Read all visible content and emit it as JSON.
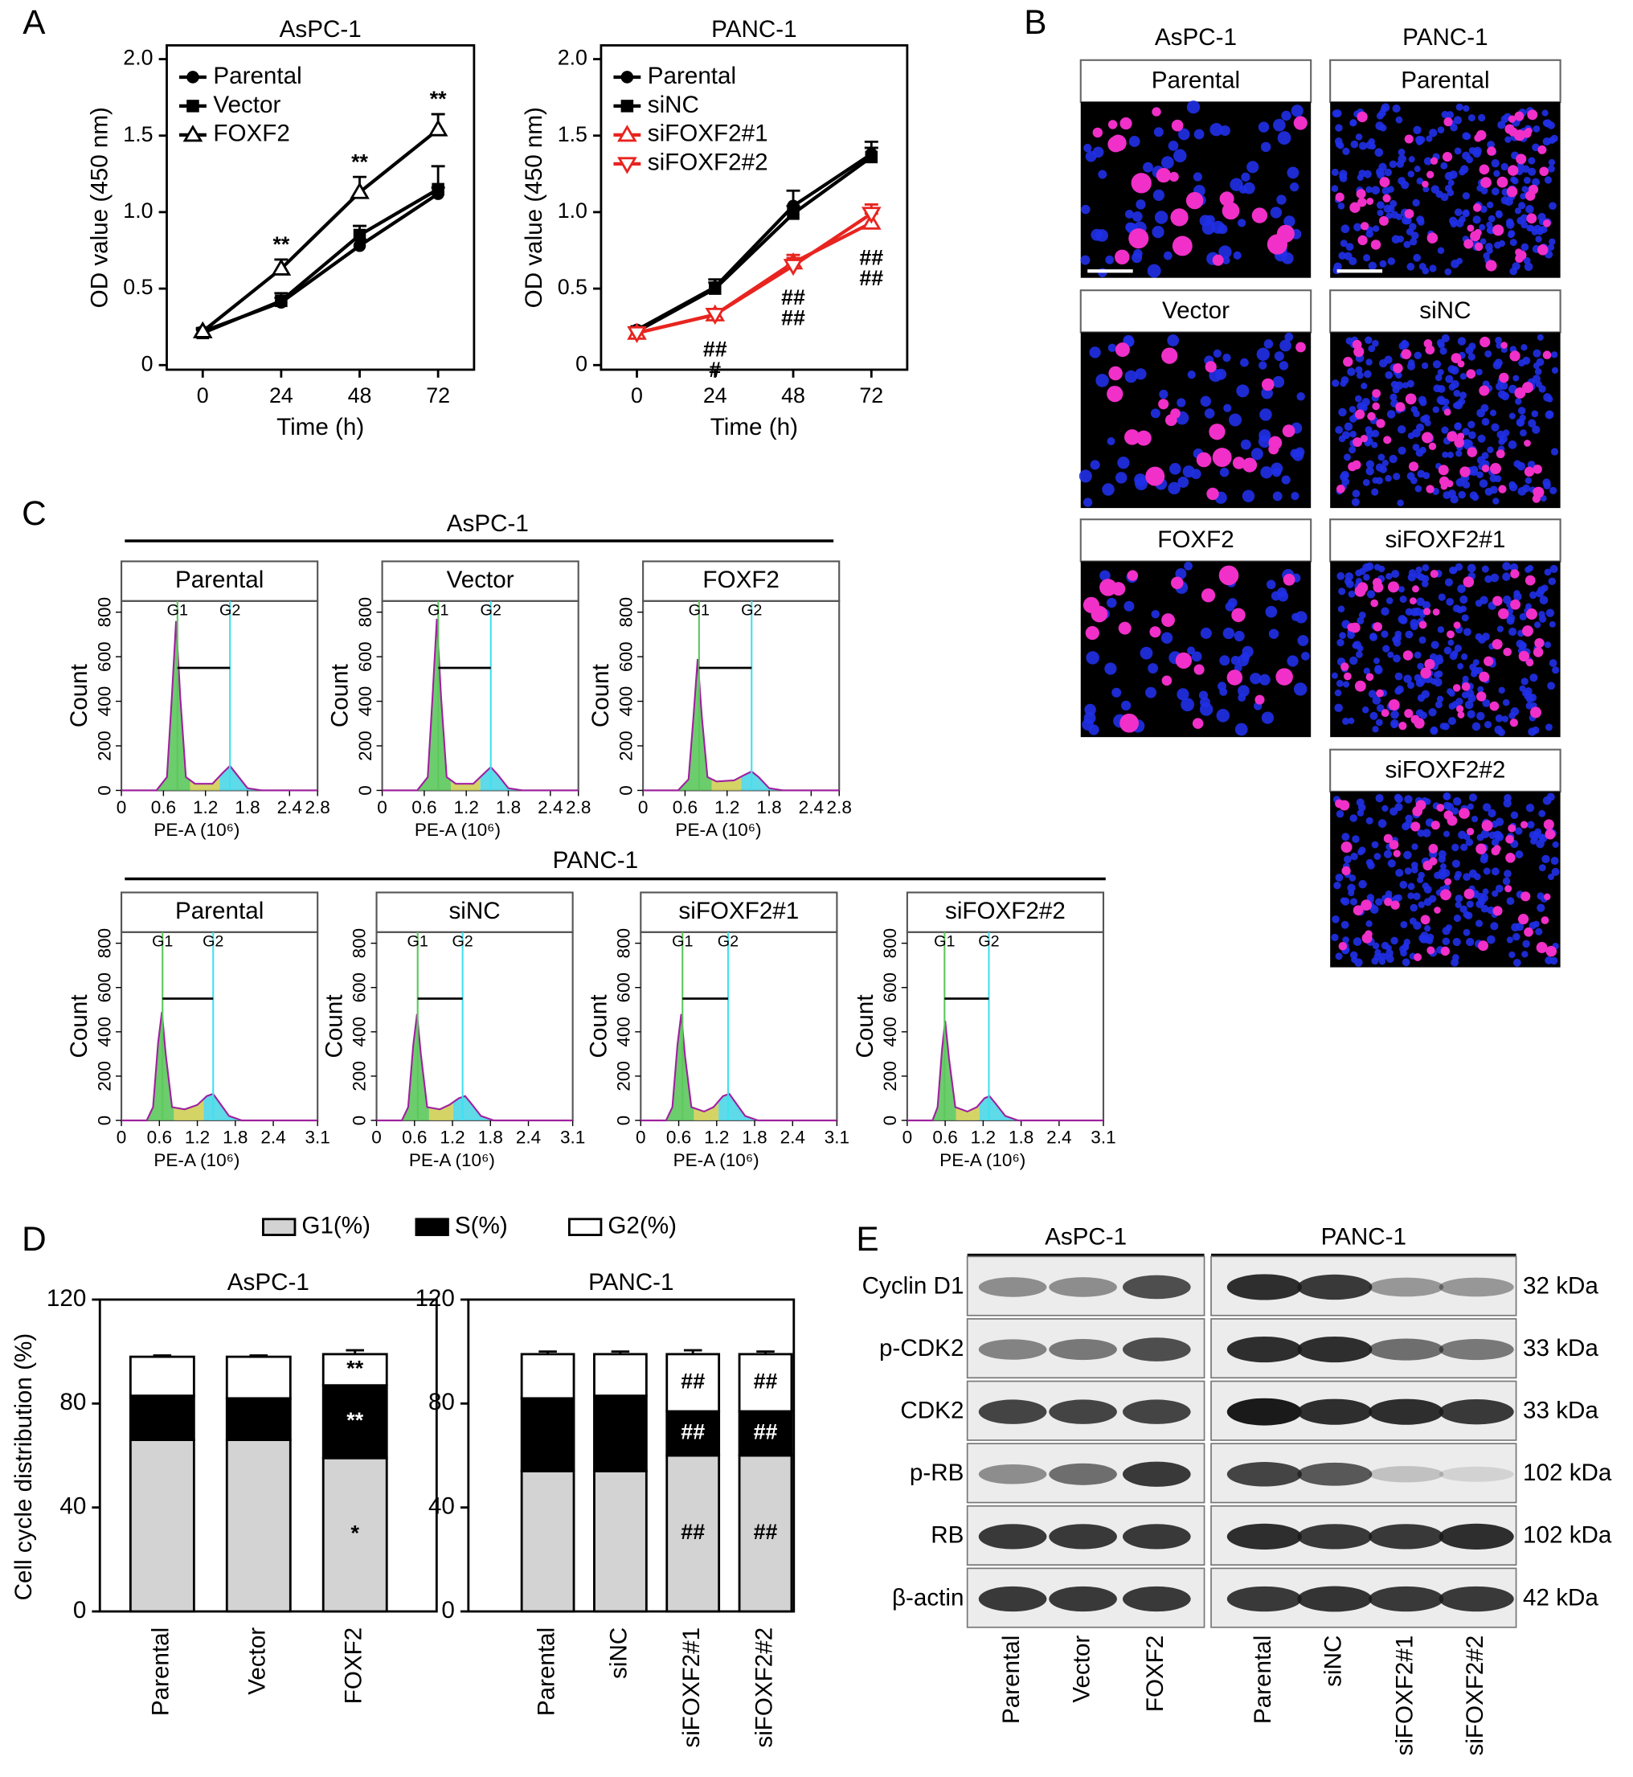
{
  "chart_data": [
    {
      "type": "line",
      "title": "AsPC-1",
      "xlabel": "Time (h)",
      "ylabel": "OD value (450 nm)",
      "x": [
        0,
        24,
        48,
        72
      ],
      "xlim": [
        -11,
        83
      ],
      "xticks": [
        0,
        24,
        48,
        72
      ],
      "ylim": [
        -0.03,
        2.09
      ],
      "yticks": [
        0,
        0.5,
        {
          "value": 1,
          "label": "1.0"
        },
        1.5,
        {
          "value": 2,
          "label": "2.0"
        }
      ],
      "legend": "upper left",
      "series": [
        {
          "name": "Parental",
          "color": "#000000",
          "marker": "circle",
          "values": [
            0.22,
            0.41,
            0.78,
            1.12
          ],
          "errors": [
            0.02,
            0.03,
            0.04,
            0.04
          ]
        },
        {
          "name": "Vector",
          "color": "#000000",
          "marker": "square",
          "values": [
            0.21,
            0.42,
            0.85,
            1.15
          ],
          "errors": [
            0.02,
            0.05,
            0.06,
            0.15
          ]
        },
        {
          "name": "FOXF2",
          "color": "#000000",
          "marker": "triangle-up-open",
          "values": [
            0.22,
            0.63,
            1.13,
            1.54
          ],
          "errors": [
            0.02,
            0.06,
            0.1,
            0.1
          ]
        }
      ],
      "annotations": [
        {
          "text": [
            "**"
          ],
          "series": 2,
          "index": 1,
          "position": "above"
        },
        {
          "text": [
            "**"
          ],
          "series": 2,
          "index": 2,
          "position": "above"
        },
        {
          "text": [
            "**"
          ],
          "series": 2,
          "index": 3,
          "position": "above"
        }
      ]
    },
    {
      "type": "line",
      "title": "PANC-1",
      "xlabel": "Time (h)",
      "ylabel": "OD value (450 nm)",
      "x": [
        0,
        24,
        48,
        72
      ],
      "xlim": [
        -11,
        83
      ],
      "xticks": [
        0,
        24,
        48,
        72
      ],
      "ylim": [
        -0.03,
        2.09
      ],
      "yticks": [
        0,
        0.5,
        {
          "value": 1,
          "label": "1.0"
        },
        1.5,
        {
          "value": 2,
          "label": "2.0"
        }
      ],
      "legend": "upper left",
      "series": [
        {
          "name": "Parental",
          "color": "#000000",
          "marker": "circle",
          "values": [
            0.23,
            0.51,
            1.04,
            1.38
          ],
          "errors": [
            0.02,
            0.05,
            0.1,
            0.08
          ]
        },
        {
          "name": "siNC",
          "color": "#000000",
          "marker": "square",
          "values": [
            0.22,
            0.5,
            0.99,
            1.36
          ],
          "errors": [
            0.02,
            0.04,
            0.05,
            0.06
          ]
        },
        {
          "name": "siFOXF2#1",
          "color": "#e8241f",
          "marker": "triangle-up-open",
          "values": [
            0.21,
            0.33,
            0.67,
            0.93
          ],
          "errors": [
            0.02,
            0.03,
            0.05,
            0.06
          ]
        },
        {
          "name": "siFOXF2#2",
          "color": "#e8241f",
          "marker": "triangle-down-open",
          "values": [
            0.21,
            0.33,
            0.65,
            0.99
          ],
          "errors": [
            0.02,
            0.03,
            0.05,
            0.06
          ]
        }
      ],
      "annotations": [
        {
          "text": [
            "##",
            "#"
          ],
          "series": 2,
          "index": 1,
          "position": "below"
        },
        {
          "text": [
            "##",
            "##"
          ],
          "series": 2,
          "index": 2,
          "position": "below"
        },
        {
          "text": [
            "##",
            "##"
          ],
          "series": 2,
          "index": 3,
          "position": "below"
        }
      ]
    },
    {
      "type": "flow",
      "title": "Parental",
      "xlabel": "PE-A (10⁶)",
      "ylabel": "Count",
      "xlim": [
        0,
        2.8
      ],
      "xticks": [
        0,
        0.6,
        1.2,
        1.8,
        2.4,
        2.8
      ],
      "ylim": [
        0,
        850
      ],
      "yticks": [
        0,
        200,
        400,
        600,
        800
      ],
      "x": [
        0,
        0.5,
        0.65,
        0.72,
        0.78,
        0.84,
        0.92,
        1.05,
        1.3,
        1.45,
        1.55,
        1.65,
        1.8,
        2.0,
        2.8
      ],
      "values": [
        0,
        0,
        60,
        420,
        760,
        420,
        60,
        30,
        30,
        80,
        110,
        70,
        10,
        0,
        0
      ],
      "markers": [
        {
          "label": "G1",
          "value": 0.8
        },
        {
          "label": "G2",
          "value": 1.55
        }
      ],
      "range_bar": 550
    },
    {
      "type": "flow",
      "title": "Vector",
      "xlabel": "PE-A (10⁶)",
      "ylabel": "Count",
      "xlim": [
        0,
        2.8
      ],
      "xticks": [
        0,
        0.6,
        1.2,
        1.8,
        2.4,
        2.8
      ],
      "ylim": [
        0,
        850
      ],
      "yticks": [
        0,
        200,
        400,
        600,
        800
      ],
      "x": [
        0,
        0.5,
        0.65,
        0.72,
        0.78,
        0.84,
        0.92,
        1.05,
        1.3,
        1.45,
        1.55,
        1.65,
        1.8,
        2.0,
        2.8
      ],
      "values": [
        0,
        0,
        60,
        430,
        770,
        420,
        60,
        30,
        30,
        75,
        105,
        70,
        10,
        0,
        0
      ],
      "markers": [
        {
          "label": "G1",
          "value": 0.8
        },
        {
          "label": "G2",
          "value": 1.55
        }
      ],
      "range_bar": 550
    },
    {
      "type": "flow",
      "title": "FOXF2",
      "xlabel": "PE-A (10⁶)",
      "ylabel": "Count",
      "xlim": [
        0,
        2.8
      ],
      "xticks": [
        0,
        0.6,
        1.2,
        1.8,
        2.4,
        2.8
      ],
      "ylim": [
        0,
        850
      ],
      "yticks": [
        0,
        200,
        400,
        600,
        800
      ],
      "x": [
        0,
        0.5,
        0.65,
        0.72,
        0.78,
        0.84,
        0.92,
        1.05,
        1.3,
        1.45,
        1.55,
        1.65,
        1.8,
        2.0,
        2.8
      ],
      "values": [
        0,
        0,
        50,
        330,
        590,
        330,
        60,
        40,
        45,
        70,
        85,
        60,
        10,
        0,
        0
      ],
      "markers": [
        {
          "label": "G1",
          "value": 0.8
        },
        {
          "label": "G2",
          "value": 1.55
        }
      ],
      "range_bar": 550
    },
    {
      "type": "flow",
      "title": "Parental",
      "xlabel": "PE-A (10⁶)",
      "ylabel": "Count",
      "xlim": [
        0,
        3.1
      ],
      "xticks": [
        0,
        0.6,
        1.2,
        1.8,
        2.4,
        3.1
      ],
      "ylim": [
        0,
        850
      ],
      "yticks": [
        0,
        200,
        400,
        600,
        800
      ],
      "x": [
        0,
        0.4,
        0.5,
        0.58,
        0.64,
        0.7,
        0.8,
        1.0,
        1.2,
        1.35,
        1.45,
        1.55,
        1.7,
        1.9,
        3.1
      ],
      "values": [
        0,
        0,
        60,
        350,
        490,
        300,
        60,
        50,
        70,
        110,
        120,
        80,
        20,
        0,
        0
      ],
      "markers": [
        {
          "label": "G1",
          "value": 0.65
        },
        {
          "label": "G2",
          "value": 1.45
        }
      ],
      "range_bar": 550
    },
    {
      "type": "flow",
      "title": "siNC",
      "xlabel": "PE-A (10⁶)",
      "ylabel": "Count",
      "xlim": [
        0,
        3.1
      ],
      "xticks": [
        0,
        0.6,
        1.2,
        1.8,
        2.4,
        3.1
      ],
      "ylim": [
        0,
        850
      ],
      "yticks": [
        0,
        200,
        400,
        600,
        800
      ],
      "x": [
        0,
        0.4,
        0.5,
        0.58,
        0.64,
        0.7,
        0.8,
        1.0,
        1.15,
        1.3,
        1.4,
        1.5,
        1.65,
        1.85,
        3.1
      ],
      "values": [
        0,
        0,
        60,
        340,
        480,
        300,
        60,
        50,
        70,
        100,
        110,
        75,
        20,
        0,
        0
      ],
      "markers": [
        {
          "label": "G1",
          "value": 0.65
        },
        {
          "label": "G2",
          "value": 1.36
        }
      ],
      "range_bar": 550
    },
    {
      "type": "flow",
      "title": "siFOXF2#1",
      "xlabel": "PE-A (10⁶)",
      "ylabel": "Count",
      "xlim": [
        0,
        3.1
      ],
      "xticks": [
        0,
        0.6,
        1.2,
        1.8,
        2.4,
        3.1
      ],
      "ylim": [
        0,
        850
      ],
      "yticks": [
        0,
        200,
        400,
        600,
        800
      ],
      "x": [
        0,
        0.4,
        0.5,
        0.58,
        0.64,
        0.7,
        0.8,
        1.0,
        1.15,
        1.3,
        1.4,
        1.5,
        1.65,
        1.85,
        3.1
      ],
      "values": [
        0,
        0,
        60,
        340,
        480,
        290,
        60,
        40,
        60,
        110,
        120,
        80,
        20,
        0,
        0
      ],
      "markers": [
        {
          "label": "G1",
          "value": 0.66
        },
        {
          "label": "G2",
          "value": 1.38
        }
      ],
      "range_bar": 550
    },
    {
      "type": "flow",
      "title": "siFOXF2#2",
      "xlabel": "PE-A (10⁶)",
      "ylabel": "Count",
      "xlim": [
        0,
        3.1
      ],
      "xticks": [
        0,
        0.6,
        1.2,
        1.8,
        2.4,
        3.1
      ],
      "ylim": [
        0,
        850
      ],
      "yticks": [
        0,
        200,
        400,
        600,
        800
      ],
      "x": [
        0,
        0.4,
        0.48,
        0.55,
        0.6,
        0.66,
        0.76,
        0.95,
        1.1,
        1.22,
        1.3,
        1.4,
        1.55,
        1.75,
        3.1
      ],
      "values": [
        0,
        0,
        60,
        320,
        450,
        280,
        60,
        40,
        60,
        100,
        110,
        75,
        20,
        0,
        0
      ],
      "markers": [
        {
          "label": "G1",
          "value": 0.59
        },
        {
          "label": "G2",
          "value": 1.29
        }
      ],
      "range_bar": 550
    },
    {
      "type": "stacked-bar",
      "title": "AsPC-1",
      "ylabel": "Cell cycle distribution (%)",
      "categories": [
        "Parental",
        "Vector",
        "FOXF2"
      ],
      "ylim": [
        0,
        120
      ],
      "yticks": [
        0,
        40,
        80,
        120
      ],
      "legend": "top",
      "series": [
        {
          "name": "G1(%)",
          "color": "#d3d3d3",
          "values": [
            66,
            66,
            59
          ]
        },
        {
          "name": "S(%)",
          "color": "#000000",
          "values": [
            17,
            16,
            28
          ],
          "errors": [
            1,
            1,
            1.5
          ]
        },
        {
          "name": "G2(%)",
          "color": "#ffffff",
          "values": [
            15,
            16,
            12
          ],
          "errors": [
            0.5,
            0.5,
            1.5
          ]
        }
      ],
      "annotations": [
        {
          "text": "*",
          "series": 0,
          "index": 2
        },
        {
          "text": "**",
          "series": 1,
          "index": 2
        },
        {
          "text": "**",
          "series": 2,
          "index": 2
        }
      ]
    },
    {
      "type": "stacked-bar",
      "title": "PANC-1",
      "categories": [
        "Parental",
        "siNC",
        "siFOXF2#1",
        "siFOXF2#2"
      ],
      "ylim": [
        0,
        120
      ],
      "yticks": [
        0,
        40,
        80,
        120
      ],
      "series": [
        {
          "color": "#d3d3d3",
          "values": [
            54,
            54,
            60,
            60
          ]
        },
        {
          "color": "#000000",
          "values": [
            28,
            29,
            17,
            17
          ],
          "errors": [
            1,
            0.8,
            1.5,
            1.5
          ]
        },
        {
          "color": "#ffffff",
          "values": [
            17,
            16,
            22,
            22
          ],
          "errors": [
            1,
            1,
            1.5,
            1
          ]
        }
      ],
      "annotations": [
        {
          "text": "##",
          "series": 0,
          "index": 2
        },
        {
          "text": "##",
          "series": 1,
          "index": 2
        },
        {
          "text": "##",
          "series": 2,
          "index": 2
        },
        {
          "text": "##",
          "series": 0,
          "index": 3
        },
        {
          "text": "##",
          "series": 1,
          "index": 3
        },
        {
          "text": "##",
          "series": 2,
          "index": 3
        }
      ]
    }
  ],
  "panel_labels": [
    "A",
    "B",
    "C",
    "D",
    "E"
  ],
  "flow_groups": [
    "AsPC-1",
    "PANC-1"
  ],
  "images": {
    "columns": [
      {
        "title": "AsPC-1",
        "tiles": [
          "Parental",
          "Vector",
          "FOXF2"
        ]
      },
      {
        "title": "PANC-1",
        "tiles": [
          "Parental",
          "siNC",
          "siFOXF2#1",
          "siFOXF2#2"
        ]
      }
    ]
  },
  "blot": {
    "groups": [
      {
        "title": "AsPC-1",
        "lanes": [
          "Parental",
          "Vector",
          "FOXF2"
        ]
      },
      {
        "title": "PANC-1",
        "lanes": [
          "Parental",
          "siNC",
          "siFOXF2#1",
          "siFOXF2#2"
        ]
      }
    ],
    "rows": [
      {
        "name": "Cyclin D1",
        "size": "32 kDa"
      },
      {
        "name": "p-CDK2",
        "size": "33 kDa"
      },
      {
        "name": "CDK2",
        "size": "33 kDa"
      },
      {
        "name": "p-RB",
        "size": "102 kDa"
      },
      {
        "name": "RB",
        "size": "102 kDa"
      },
      {
        "name": "β-actin",
        "size": "42 kDa"
      }
    ]
  }
}
